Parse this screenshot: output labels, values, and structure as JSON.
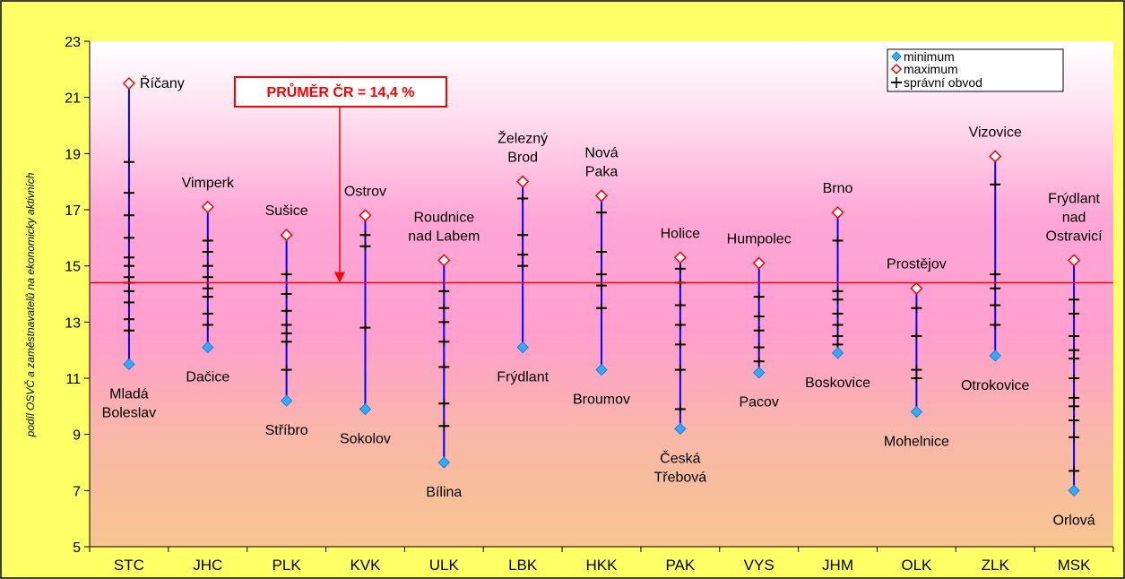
{
  "chart_data": {
    "type": "scatter",
    "ylabel": "podíl OSVČ a zaměstnavatelů na ekonomicky aktivních",
    "ylim": [
      5,
      23
    ],
    "yticks": [
      5,
      7,
      9,
      11,
      13,
      15,
      17,
      19,
      21,
      23
    ],
    "categories": [
      "STC",
      "JHC",
      "PLK",
      "KVK",
      "ULK",
      "LBK",
      "HKK",
      "PAK",
      "VYS",
      "JHM",
      "OLK",
      "ZLK",
      "MSK"
    ],
    "legend": {
      "placement": "top-right",
      "entries": [
        "minimum",
        "maximum",
        "správní obvod"
      ]
    },
    "average": {
      "value": 14.4,
      "label": "PRŮMĚR ČR = 14,4 %"
    },
    "colors": {
      "plot_background_top": "#ffffff",
      "plot_mid": "#ff9ad0",
      "plot_bottom": "#f7c28f",
      "frame": "#ffff66",
      "range_line": "#0000ff",
      "average_line": "#ff0000",
      "min_marker": "#33aaff",
      "max_marker": "#ff0000",
      "district_marker": "#000000"
    },
    "series": [
      {
        "category": "STC",
        "min": 11.5,
        "max": 21.5,
        "min_label": "Mladá Boleslav",
        "max_label": "Říčany",
        "districts": [
          12.7,
          13.1,
          13.7,
          14.1,
          14.4,
          14.6,
          15.0,
          15.3,
          16.0,
          16.8,
          17.6,
          18.7
        ]
      },
      {
        "category": "JHC",
        "min": 12.1,
        "max": 17.1,
        "min_label": "Dačice",
        "max_label": "Vimperk",
        "districts": [
          12.9,
          13.3,
          13.9,
          14.2,
          14.6,
          15.0,
          15.5,
          15.9
        ]
      },
      {
        "category": "PLK",
        "min": 10.2,
        "max": 16.1,
        "min_label": "Stříbro",
        "max_label": "Sušice",
        "districts": [
          11.3,
          12.3,
          12.6,
          12.9,
          13.4,
          14.0,
          14.7
        ]
      },
      {
        "category": "KVK",
        "min": 9.9,
        "max": 16.8,
        "min_label": "Sokolov",
        "max_label": "Ostrov",
        "districts": [
          12.8,
          15.7,
          16.1
        ]
      },
      {
        "category": "ULK",
        "min": 8.0,
        "max": 15.2,
        "min_label": "Bílina",
        "max_label": "Roudnice nad Labem",
        "districts": [
          9.3,
          10.1,
          11.4,
          12.3,
          13.0,
          13.5,
          14.1
        ]
      },
      {
        "category": "LBK",
        "min": 12.1,
        "max": 18.0,
        "min_label": "Frýdlant",
        "max_label": "Železný Brod",
        "districts": [
          15.0,
          15.4,
          16.1,
          17.4
        ]
      },
      {
        "category": "HKK",
        "min": 11.3,
        "max": 17.5,
        "min_label": "Broumov",
        "max_label": "Nová Paka",
        "districts": [
          13.5,
          14.3,
          14.7,
          15.5,
          16.9
        ]
      },
      {
        "category": "PAK",
        "min": 9.2,
        "max": 15.3,
        "min_label": "Česká Třebová",
        "max_label": "Holice",
        "districts": [
          9.9,
          11.3,
          12.2,
          12.9,
          13.6,
          14.4,
          14.9
        ]
      },
      {
        "category": "VYS",
        "min": 11.2,
        "max": 15.1,
        "min_label": "Pacov",
        "max_label": "Humpolec",
        "districts": [
          11.6,
          12.1,
          12.7,
          13.2,
          13.9
        ]
      },
      {
        "category": "JHM",
        "min": 11.9,
        "max": 16.9,
        "min_label": "Boskovice",
        "max_label": "Brno",
        "districts": [
          12.2,
          12.5,
          12.9,
          13.3,
          13.8,
          14.1,
          15.9
        ]
      },
      {
        "category": "OLK",
        "min": 9.8,
        "max": 14.2,
        "min_label": "Mohelnice",
        "max_label": "Prostějov",
        "districts": [
          11.0,
          11.3,
          12.5,
          13.5
        ]
      },
      {
        "category": "ZLK",
        "min": 11.8,
        "max": 18.9,
        "min_label": "Otrokovice",
        "max_label": "Vizovice",
        "districts": [
          12.9,
          13.6,
          14.2,
          14.7,
          17.9
        ]
      },
      {
        "category": "MSK",
        "min": 7.0,
        "max": 15.2,
        "min_label": "Orlová",
        "max_label": "Frýdlant nad Ostravicí",
        "districts": [
          7.7,
          8.9,
          9.5,
          10.0,
          10.3,
          11.0,
          11.7,
          12.0,
          12.5,
          13.3,
          13.8
        ]
      }
    ]
  }
}
